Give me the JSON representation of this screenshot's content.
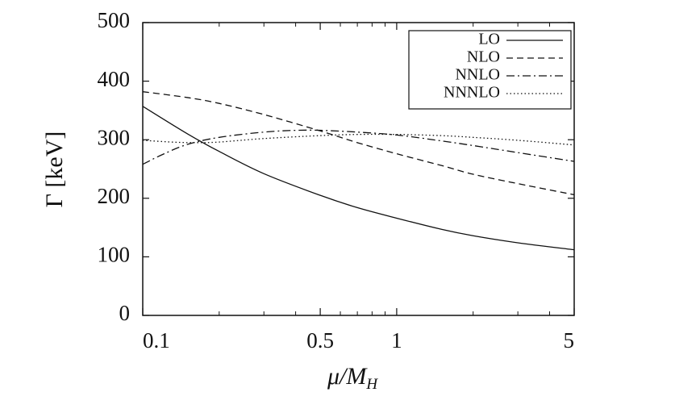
{
  "chart_data": {
    "type": "line",
    "title": "",
    "xlabel": "μ/M_H",
    "xlabel_parts": {
      "main": "μ/M",
      "sub": "H"
    },
    "ylabel": "Γ [keV]",
    "x_scale": "log",
    "xlim": [
      0.1,
      5
    ],
    "ylim": [
      0,
      500
    ],
    "xticks": [
      0.1,
      0.5,
      1,
      5
    ],
    "xtick_labels": [
      "0.1",
      "0.5",
      "1",
      "5"
    ],
    "yticks": [
      0,
      100,
      200,
      300,
      400,
      500
    ],
    "ytick_labels": [
      "0",
      "100",
      "200",
      "300",
      "400",
      "500"
    ],
    "grid": false,
    "legend_position": "top-right",
    "series": [
      {
        "name": "LO",
        "style": "solid",
        "x": [
          0.1,
          0.15,
          0.2,
          0.3,
          0.5,
          0.7,
          1.0,
          1.5,
          2.0,
          3.0,
          5.0
        ],
        "y": [
          357,
          310,
          280,
          242,
          205,
          184,
          166,
          147,
          136,
          124,
          112
        ]
      },
      {
        "name": "NLO",
        "style": "dashed",
        "x": [
          0.1,
          0.15,
          0.2,
          0.3,
          0.5,
          0.7,
          1.0,
          1.5,
          2.0,
          3.0,
          5.0
        ],
        "y": [
          382,
          372,
          362,
          343,
          315,
          295,
          276,
          256,
          241,
          225,
          206
        ]
      },
      {
        "name": "NNLO",
        "style": "dashdot",
        "x": [
          0.1,
          0.12,
          0.15,
          0.2,
          0.3,
          0.4,
          0.5,
          0.7,
          1.0,
          1.5,
          2.0,
          3.0,
          5.0
        ],
        "y": [
          258,
          275,
          292,
          304,
          313,
          316,
          316,
          313,
          308,
          298,
          290,
          278,
          263
        ]
      },
      {
        "name": "NNNLO",
        "style": "dotted",
        "x": [
          0.1,
          0.13,
          0.16,
          0.2,
          0.3,
          0.5,
          0.7,
          1.0,
          1.5,
          2.0,
          3.0,
          5.0
        ],
        "y": [
          299,
          296,
          295,
          296,
          302,
          307,
          309,
          309,
          307,
          304,
          299,
          291
        ]
      }
    ]
  }
}
